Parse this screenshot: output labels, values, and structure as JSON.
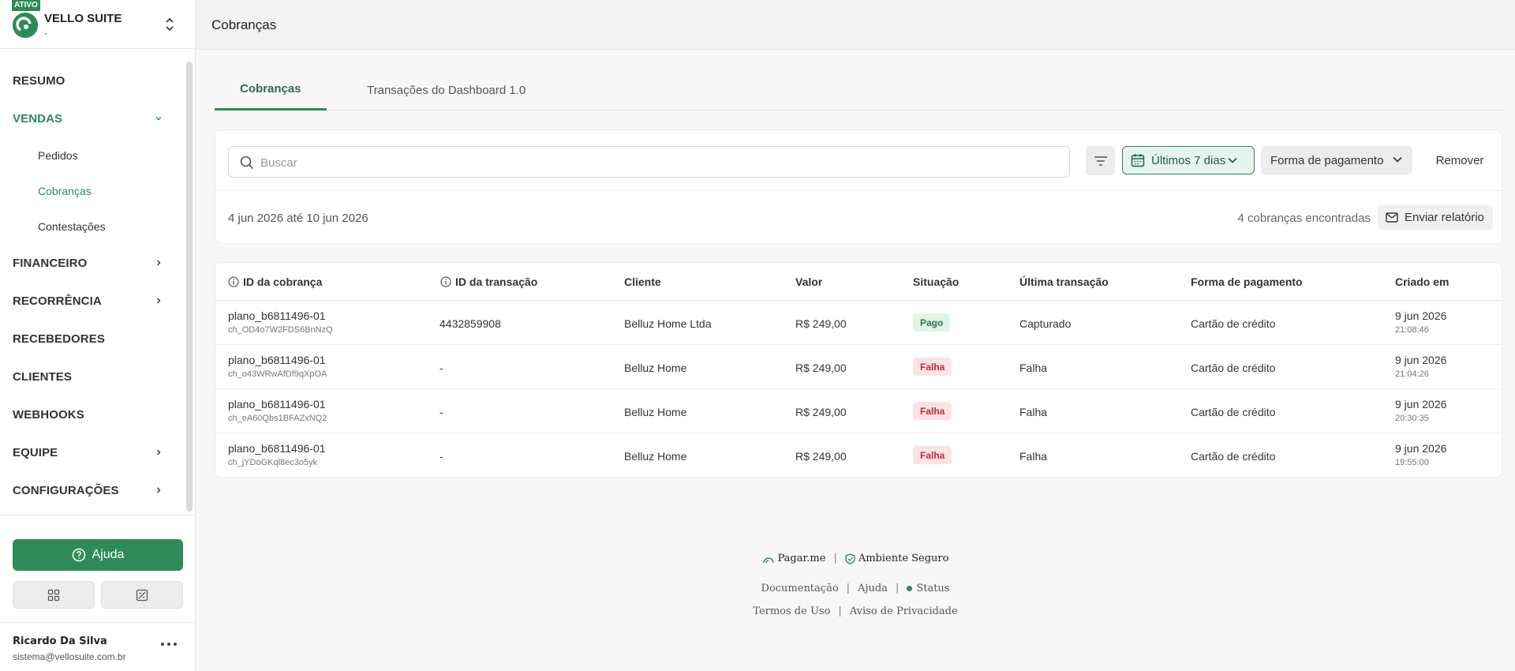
{
  "sidebar": {
    "org_badge": "ATIVO",
    "org_name": "VELLO SUITE",
    "org_sub": "-",
    "nav": [
      {
        "label": "RESUMO"
      },
      {
        "label": "VENDAS"
      },
      {
        "label": "FINANCEIRO"
      },
      {
        "label": "RECORRÊNCIA"
      },
      {
        "label": "RECEBEDORES"
      },
      {
        "label": "CLIENTES"
      },
      {
        "label": "WEBHOOKS"
      },
      {
        "label": "EQUIPE"
      },
      {
        "label": "CONFIGURAÇÕES"
      }
    ],
    "vendas_sub": [
      {
        "label": "Pedidos"
      },
      {
        "label": "Cobranças"
      },
      {
        "label": "Contestações"
      }
    ],
    "help_label": "Ajuda",
    "user_name": "Ricardo Da Silva",
    "user_email": "sistema@vellosuite.com.br"
  },
  "header": {
    "title": "Cobranças"
  },
  "tabs": [
    {
      "label": "Cobranças"
    },
    {
      "label": "Transações do Dashboard 1.0"
    }
  ],
  "filters": {
    "search_placeholder": "Buscar",
    "date_label": "Últimos 7 dias",
    "payment_label": "Forma de pagamento",
    "remove_label": "Remover",
    "period": "4 jun 2026 até 10 jun 2026",
    "found": "4 cobranças encontradas",
    "report_label": "Enviar relatório"
  },
  "table": {
    "headers": [
      "ID da cobrança",
      "ID da transação",
      "Cliente",
      "Valor",
      "Situação",
      "Última transação",
      "Forma de pagamento",
      "Criado em"
    ],
    "rows": [
      {
        "id": "plano_b6811496-01",
        "ch": "ch_OD4o7W2FDS6BnNzQ",
        "tx": "4432859908",
        "client": "Belluz Home Ltda",
        "value": "R$ 249,00",
        "status": "Pago",
        "last": "Capturado",
        "method": "Cartão de crédito",
        "date": "9 jun 2026",
        "time": "21:08:46"
      },
      {
        "id": "plano_b6811496-01",
        "ch": "ch_o43WRwAfDf9qXpOA",
        "tx": "-",
        "client": "Belluz Home",
        "value": "R$ 249,00",
        "status": "Falha",
        "last": "Falha",
        "method": "Cartão de crédito",
        "date": "9 jun 2026",
        "time": "21:04:26"
      },
      {
        "id": "plano_b6811496-01",
        "ch": "ch_eA60Qbs1BFAZxNQ2",
        "tx": "-",
        "client": "Belluz Home",
        "value": "R$ 249,00",
        "status": "Falha",
        "last": "Falha",
        "method": "Cartão de crédito",
        "date": "9 jun 2026",
        "time": "20:30:35"
      },
      {
        "id": "plano_b6811496-01",
        "ch": "ch_jYDoGKql8ec3o5yk",
        "tx": "-",
        "client": "Belluz Home",
        "value": "R$ 249,00",
        "status": "Falha",
        "last": "Falha",
        "method": "Cartão de crédito",
        "date": "9 jun 2026",
        "time": "19:55:00"
      }
    ]
  },
  "footer": {
    "brand": "Pagar.me",
    "secure": "Ambiente Seguro",
    "docs": "Documentação",
    "help": "Ajuda",
    "status": "Status",
    "terms": "Termos de Uso",
    "privacy": "Aviso de Privacidade"
  },
  "colors": {
    "accent": "#2e8b57",
    "fail": "#c3283b"
  }
}
